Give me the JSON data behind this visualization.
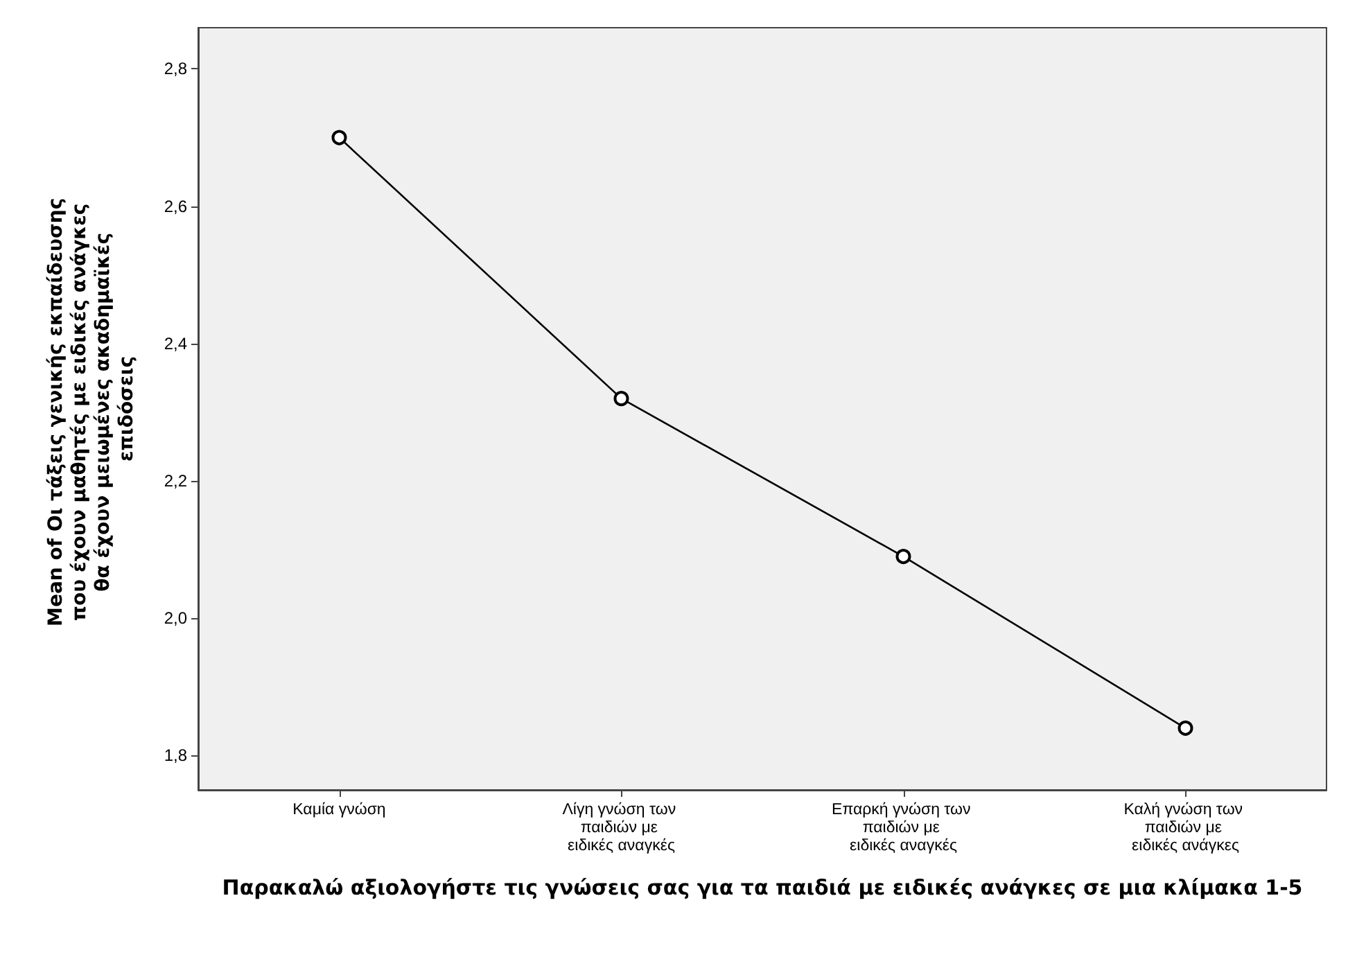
{
  "chart_data": {
    "type": "line",
    "xlabel": "Παρακαλώ αξιολογήστε τις γνώσεις σας για τα παιδιά με ειδικές ανάγκες σε μια κλίμακα 1-5",
    "ylabel": "Mean of Οι τάξεις γενικής εκπαίδευσης που έχουν μαθητές με ειδικές ανάγκες θα έχουν μειωμένες ακαδημαϊκές επιδόσεις",
    "categories": [
      "Καμία γνώση",
      "Λίγη γνώση των παιδιών με ειδικές αναγκές",
      "Επαρκή γνώση των παιδιών με ειδικές αναγκές",
      "Καλή γνώση των παιδιών με ειδικές ανάγκες"
    ],
    "series": [
      {
        "color": "#000000",
        "values": [
          2.7,
          2.32,
          2.09,
          1.84
        ]
      }
    ],
    "ylim": [
      1.75,
      2.86
    ],
    "yticks": [
      {
        "value": 1.8,
        "label": "1,8"
      },
      {
        "value": 2.0,
        "label": "2,0"
      },
      {
        "value": 2.2,
        "label": "2,2"
      },
      {
        "value": 2.4,
        "label": "2,4"
      },
      {
        "value": 2.6,
        "label": "2,6"
      },
      {
        "value": 2.8,
        "label": "2,8"
      }
    ],
    "grid": false,
    "marker": "circle",
    "line_style": "solid"
  }
}
